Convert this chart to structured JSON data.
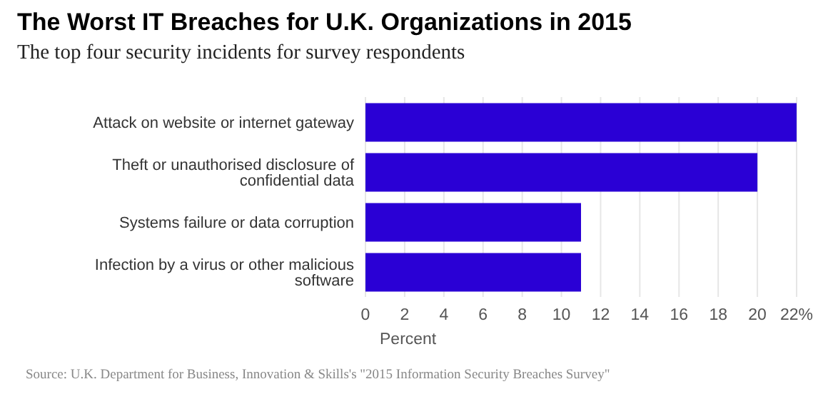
{
  "chart_data": {
    "type": "bar",
    "orientation": "horizontal",
    "title": "The Worst IT Breaches for U.K. Organizations in 2015",
    "subtitle": "The top four security incidents for survey respondents",
    "xlabel": "Percent",
    "categories": [
      "Attack on website or internet gateway",
      "Theft or unauthorised disclosure of confidential data",
      "Systems failure or data corruption",
      "Infection by a virus or other malicious software"
    ],
    "values": [
      22,
      20,
      11,
      11
    ],
    "color": "#2a00d5",
    "xlim": [
      0,
      22
    ],
    "xticks": [
      0,
      2,
      4,
      6,
      8,
      10,
      12,
      14,
      16,
      18,
      20,
      {
        "value": 22,
        "label": "22%"
      }
    ],
    "grid": "x",
    "legend": false,
    "annotations": [
      "Source: U.K. Department for Business, Innovation & Skills's \"2015 Information Security Breaches Survey\""
    ]
  }
}
